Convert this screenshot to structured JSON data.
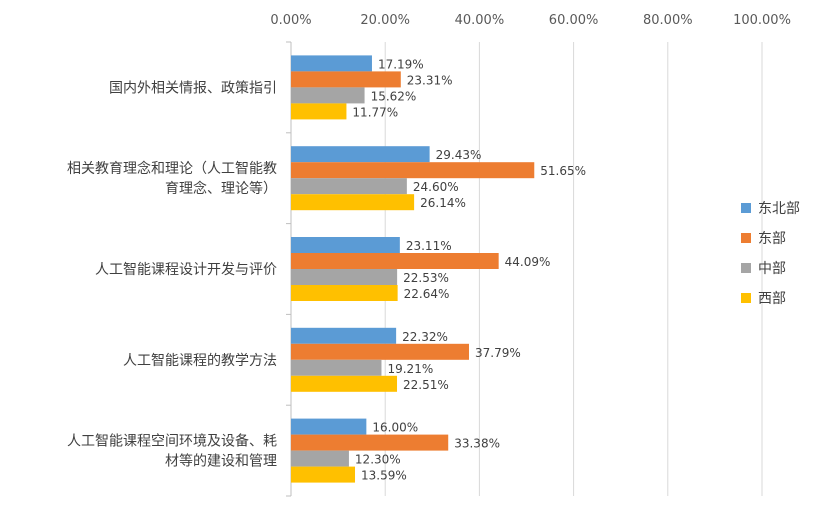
{
  "chart_data": {
    "type": "bar",
    "orientation": "horizontal",
    "categories": [
      [
        "国内外相关情报、政策指引"
      ],
      [
        "相关教育理念和理论（人工智能教",
        "育理念、理论等）"
      ],
      [
        "人工智能课程设计开发与评价"
      ],
      [
        "人工智能课程的教学方法"
      ],
      [
        "人工智能课程空间环境及设备、耗",
        "材等的建设和管理"
      ]
    ],
    "series": [
      {
        "name": "东北部",
        "color": "#5B9BD5",
        "values": [
          17.19,
          29.43,
          23.11,
          22.32,
          16.0
        ],
        "labels": [
          "17.19%",
          "29.43%",
          "23.11%",
          "22.32%",
          "16.00%"
        ]
      },
      {
        "name": "东部",
        "color": "#ED7D31",
        "values": [
          23.31,
          51.65,
          44.09,
          37.79,
          33.38
        ],
        "labels": [
          "23.31%",
          "51.65%",
          "44.09%",
          "37.79%",
          "33.38%"
        ]
      },
      {
        "name": "中部",
        "color": "#A5A5A5",
        "values": [
          15.62,
          24.6,
          22.53,
          19.21,
          12.3
        ],
        "labels": [
          "15.62%",
          "24.60%",
          "22.53%",
          "19.21%",
          "12.30%"
        ]
      },
      {
        "name": "西部",
        "color": "#FFC000",
        "values": [
          11.77,
          26.14,
          22.64,
          22.51,
          13.59
        ],
        "labels": [
          "11.77%",
          "26.14%",
          "22.64%",
          "22.51%",
          "13.59%"
        ]
      }
    ],
    "xlim": [
      0,
      100
    ],
    "xticks": [
      0,
      20,
      40,
      60,
      80,
      100
    ],
    "xtick_labels": [
      "0.00%",
      "20.00%",
      "40.00%",
      "60.00%",
      "80.00%",
      "100.00%"
    ],
    "xaxis_position": "top",
    "grid": true,
    "legend": "right",
    "title": "",
    "xlabel": "",
    "ylabel": ""
  }
}
